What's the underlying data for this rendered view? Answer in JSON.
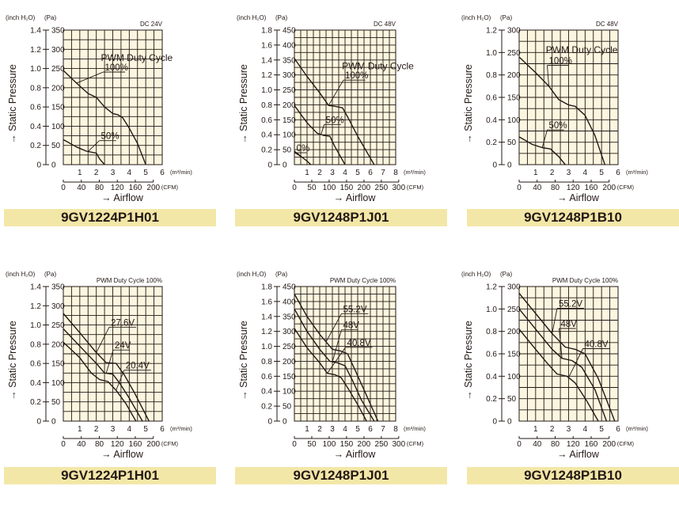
{
  "chart_data": [
    {
      "type": "line",
      "model": "9GV1224P1H01",
      "rating": "DC 24V",
      "title": "",
      "unit_wg": "(inch H₂O)",
      "unit_pa": "(Pa)",
      "ylabel": "→ Static Pressure",
      "xlabel": "→ Airflow",
      "x_unit_m3": "(m³/min)",
      "x_unit_cfm": "(CFM)",
      "xlim_m3": [
        0,
        6
      ],
      "ylim_pa": [
        0,
        350
      ],
      "yticks_pa": [
        "0",
        "50",
        "100",
        "150",
        "200",
        "250",
        "300",
        "350"
      ],
      "yticks_wg": [
        "0",
        "0.2",
        "0.4",
        "0.6",
        "0.8",
        "1.0",
        "1.2",
        "1.4"
      ],
      "xticks_m3": [
        "1",
        "2",
        "3",
        "4",
        "5",
        "6"
      ],
      "xticks_cfm": [
        "0",
        "40",
        "80",
        "120",
        "160",
        "200"
      ],
      "series": [
        {
          "name": "100%",
          "x": [
            0,
            0.8,
            1.5,
            2.0,
            2.5,
            3.0,
            3.3,
            3.6,
            4.0,
            4.5,
            5.0
          ],
          "y": [
            245,
            212,
            185,
            175,
            150,
            133,
            130,
            122,
            95,
            55,
            0
          ]
        },
        {
          "name": "50%",
          "x": [
            0,
            0.8,
            1.4,
            2.0,
            2.2,
            2.5
          ],
          "y": [
            65,
            46,
            35,
            30,
            15,
            0
          ]
        }
      ],
      "annotations": [
        {
          "text": "PWM Duty Cycle"
        },
        {
          "text": "100%"
        },
        {
          "text": "50%"
        }
      ]
    },
    {
      "type": "line",
      "model": "9GV1248P1J01",
      "rating": "DC 48V",
      "title": "",
      "unit_wg": "(inch H₂O)",
      "unit_pa": "(Pa)",
      "ylabel": "→ Static Pressure",
      "xlabel": "→ Airflow",
      "x_unit_m3": "(m³/min)",
      "x_unit_cfm": "(CFM)",
      "xlim_m3": [
        0,
        8
      ],
      "ylim_pa": [
        0,
        450
      ],
      "yticks_pa": [
        "0",
        "50",
        "100",
        "150",
        "200",
        "250",
        "300",
        "350",
        "400",
        "450"
      ],
      "yticks_wg": [
        "0",
        "0.2",
        "0.4",
        "0.6",
        "0.8",
        "1.0",
        "1.2",
        "1.4",
        "1.6",
        "1.8"
      ],
      "xticks_m3": [
        "1",
        "2",
        "3",
        "4",
        "5",
        "6",
        "7",
        "8"
      ],
      "xticks_cfm": [
        "0",
        "50",
        "100",
        "150",
        "200",
        "250",
        "300"
      ],
      "series": [
        {
          "name": "100%",
          "x": [
            0,
            1,
            2,
            2.7,
            3.2,
            3.8,
            4.2,
            5,
            6.3
          ],
          "y": [
            355,
            295,
            240,
            198,
            195,
            190,
            160,
            95,
            0
          ]
        },
        {
          "name": "50%",
          "x": [
            0,
            1,
            1.8,
            2.3,
            2.8,
            3.2,
            4
          ],
          "y": [
            198,
            140,
            105,
            98,
            95,
            60,
            0
          ]
        },
        {
          "name": "0%",
          "x": [
            0,
            0.6,
            1,
            1.3
          ],
          "y": [
            45,
            25,
            12,
            0
          ]
        }
      ],
      "annotations": [
        {
          "text": "PWM Duty Cycle"
        },
        {
          "text": "100%"
        },
        {
          "text": "50%"
        },
        {
          "text": "0%"
        }
      ]
    },
    {
      "type": "line",
      "model": "9GV1248P1B10",
      "rating": "DC 48V",
      "title": "",
      "unit_wg": "(inch H₂O)",
      "unit_pa": "(Pa)",
      "ylabel": "→ Static Pressure",
      "xlabel": "→ Airflow",
      "x_unit_m3": "(m³/min)",
      "x_unit_cfm": "(CFM)",
      "xlim_m3": [
        0,
        6
      ],
      "ylim_pa": [
        0,
        300
      ],
      "yticks_pa": [
        "0",
        "50",
        "100",
        "150",
        "200",
        "250",
        "300"
      ],
      "yticks_wg": [
        "0",
        "0.2",
        "0.4",
        "0.6",
        "0.8",
        "1.0",
        "1.2"
      ],
      "xticks_m3": [
        "1",
        "2",
        "3",
        "4",
        "5",
        "6"
      ],
      "xticks_cfm": [
        "0",
        "40",
        "80",
        "120",
        "160",
        "200"
      ],
      "series": [
        {
          "name": "100%",
          "x": [
            0,
            1,
            1.8,
            2.4,
            3,
            3.4,
            4,
            4.6,
            5.2
          ],
          "y": [
            240,
            205,
            175,
            145,
            133,
            130,
            110,
            65,
            0
          ]
        },
        {
          "name": "50%",
          "x": [
            0,
            0.8,
            1.4,
            1.9,
            2.4,
            2.8
          ],
          "y": [
            62,
            45,
            38,
            35,
            18,
            0
          ]
        }
      ],
      "annotations": [
        {
          "text": "PWM Duty Cycle"
        },
        {
          "text": "100%"
        },
        {
          "text": "50%"
        }
      ]
    },
    {
      "type": "line",
      "model": "9GV1224P1H01",
      "rating": "PWM Duty Cycle 100%",
      "title": "",
      "unit_wg": "(inch H₂O)",
      "unit_pa": "(Pa)",
      "ylabel": "→ Static Pressure",
      "xlabel": "→ Airflow",
      "x_unit_m3": "(m³/min)",
      "x_unit_cfm": "(CFM)",
      "xlim_m3": [
        0,
        6
      ],
      "ylim_pa": [
        0,
        350
      ],
      "yticks_pa": [
        "0",
        "50",
        "100",
        "150",
        "200",
        "250",
        "300",
        "350"
      ],
      "yticks_wg": [
        "0",
        "0.2",
        "0.4",
        "0.6",
        "0.8",
        "1.0",
        "1.2",
        "1.4"
      ],
      "xticks_m3": [
        "1",
        "2",
        "3",
        "4",
        "5",
        "6"
      ],
      "xticks_cfm": [
        "0",
        "40",
        "80",
        "120",
        "160",
        "200"
      ],
      "series": [
        {
          "name": "27.6V",
          "x": [
            0,
            1,
            2,
            2.6,
            3.2,
            3.7,
            4.3,
            5.2
          ],
          "y": [
            280,
            230,
            178,
            152,
            150,
            120,
            75,
            0
          ]
        },
        {
          "name": "24V",
          "x": [
            0,
            1,
            2,
            2.5,
            3,
            3.4,
            4,
            4.8
          ],
          "y": [
            240,
            195,
            150,
            125,
            122,
            100,
            60,
            0
          ]
        },
        {
          "name": "20.4V",
          "x": [
            0,
            1,
            1.7,
            2.2,
            2.7,
            3.2,
            3.8,
            4.4
          ],
          "y": [
            205,
            165,
            125,
            108,
            103,
            80,
            45,
            0
          ]
        }
      ],
      "annotations": [
        {
          "text": "27.6V"
        },
        {
          "text": "24V"
        },
        {
          "text": "20.4V"
        }
      ]
    },
    {
      "type": "line",
      "model": "9GV1248P1J01",
      "rating": "PWM Duty Cycle 100%",
      "title": "",
      "unit_wg": "(inch H₂O)",
      "unit_pa": "(Pa)",
      "ylabel": "→ Static Pressure",
      "xlabel": "→ Airflow",
      "x_unit_m3": "(m³/min)",
      "x_unit_cfm": "(CFM)",
      "xlim_m3": [
        0,
        8
      ],
      "ylim_pa": [
        0,
        450
      ],
      "yticks_pa": [
        "0",
        "50",
        "100",
        "150",
        "200",
        "250",
        "300",
        "350",
        "400",
        "450"
      ],
      "yticks_wg": [
        "0",
        "0.2",
        "0.4",
        "0.6",
        "0.8",
        "1.0",
        "1.2",
        "1.4",
        "1.6",
        "1.8"
      ],
      "xticks_m3": [
        "1",
        "2",
        "3",
        "4",
        "5",
        "6",
        "7",
        "8"
      ],
      "xticks_cfm": [
        "0",
        "50",
        "100",
        "150",
        "200",
        "250",
        "300"
      ],
      "series": [
        {
          "name": "55.2V",
          "x": [
            0,
            1,
            2,
            3,
            3.6,
            4.2,
            4.8,
            5.6,
            6.6
          ],
          "y": [
            425,
            350,
            290,
            240,
            235,
            225,
            170,
            95,
            0
          ]
        },
        {
          "name": "48V",
          "x": [
            0,
            1,
            2,
            2.8,
            3.4,
            4,
            4.6,
            5.3,
            6.3
          ],
          "y": [
            375,
            300,
            240,
            200,
            195,
            185,
            135,
            70,
            0
          ]
        },
        {
          "name": "40.8V",
          "x": [
            0,
            1,
            2,
            2.6,
            3.2,
            3.7,
            4.3,
            5,
            5.7
          ],
          "y": [
            310,
            245,
            195,
            160,
            155,
            145,
            105,
            55,
            0
          ]
        }
      ],
      "annotations": [
        {
          "text": "55.2V"
        },
        {
          "text": "48V"
        },
        {
          "text": "40.8V"
        }
      ]
    },
    {
      "type": "line",
      "model": "9GV1248P1B10",
      "rating": "PWM Duty Cycle 100%",
      "title": "",
      "unit_wg": "(inch H₂O)",
      "unit_pa": "(Pa)",
      "ylabel": "→ Static Pressure",
      "xlabel": "→ Airflow",
      "x_unit_m3": "(m³/min)",
      "x_unit_cfm": "(CFM)",
      "xlim_m3": [
        0,
        6
      ],
      "ylim_pa": [
        0,
        300
      ],
      "yticks_pa": [
        "0",
        "50",
        "100",
        "150",
        "200",
        "250",
        "300"
      ],
      "yticks_wg": [
        "0",
        "0.2",
        "0.4",
        "0.6",
        "0.8",
        "1.0",
        "1.2"
      ],
      "xticks_m3": [
        "1",
        "2",
        "3",
        "4",
        "5",
        "6"
      ],
      "xticks_cfm": [
        "0",
        "40",
        "80",
        "120",
        "160",
        "200"
      ],
      "series": [
        {
          "name": "55.2V",
          "x": [
            0,
            1,
            2,
            2.8,
            3.4,
            4,
            4.8,
            5.8
          ],
          "y": [
            285,
            240,
            195,
            165,
            160,
            150,
            95,
            0
          ]
        },
        {
          "name": "48V",
          "x": [
            0,
            1,
            2,
            2.6,
            3.2,
            3.8,
            4.6,
            5.3
          ],
          "y": [
            250,
            205,
            160,
            140,
            135,
            120,
            70,
            0
          ]
        },
        {
          "name": "40.8V",
          "x": [
            0,
            1,
            1.8,
            2.3,
            2.9,
            3.4,
            4.1,
            4.8
          ],
          "y": [
            205,
            160,
            125,
            105,
            100,
            85,
            45,
            0
          ]
        }
      ],
      "annotations": [
        {
          "text": "55.2V"
        },
        {
          "text": "48V"
        },
        {
          "text": "40.8V"
        }
      ]
    }
  ]
}
